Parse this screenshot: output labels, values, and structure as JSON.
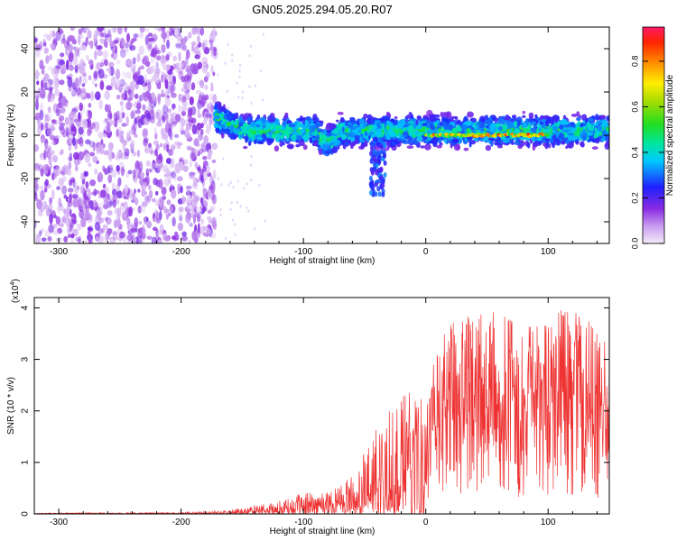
{
  "title": "GN05.2025.294.05.20.R07",
  "colors": {
    "signal": "#ee3333",
    "axis": "#000000",
    "background": "#ffffff"
  },
  "chart_data": [
    {
      "type": "heatmap",
      "title": "GN05.2025.294.05.20.R07",
      "xlabel": "Height of straight line (km)",
      "ylabel": "Frequency (Hz)",
      "xlim": [
        -320,
        150
      ],
      "ylim": [
        -50,
        50
      ],
      "x_ticks": [
        -300,
        -200,
        -100,
        0,
        100
      ],
      "x_tick_labels": [
        "-300",
        "-200",
        "-100",
        "0",
        "100"
      ],
      "y_ticks": [
        -40,
        -20,
        0,
        20,
        40
      ],
      "y_tick_labels": [
        "-40",
        "-20",
        "0",
        "20",
        "40"
      ],
      "colorbar": {
        "label": "Normalized spectral amplitude",
        "range": [
          0,
          0.95
        ],
        "ticks": [
          0.0,
          0.2,
          0.4,
          0.6,
          0.8
        ],
        "tick_labels": [
          "0.0",
          "0.2",
          "0.4",
          "0.6",
          "0.8"
        ]
      },
      "regions": [
        {
          "name": "broadband noise",
          "x_range": [
            -320,
            -172
          ],
          "freq_range": [
            -50,
            50
          ],
          "amplitude": 0.1
        },
        {
          "name": "signal band",
          "x_range": [
            -172,
            150
          ],
          "center_freq": 2,
          "halfwidth_hz": 7,
          "amplitude": 0.3
        },
        {
          "name": "strong carrier",
          "x_range": [
            0,
            100
          ],
          "center_freq": 0,
          "amplitude": 0.9
        }
      ]
    },
    {
      "type": "line",
      "xlabel": "Height of straight line (km)",
      "ylabel": "SNR (10 * v/v)",
      "scale_label": "(x10",
      "scale_exponent": "4",
      "xlim": [
        -320,
        150
      ],
      "ylim": [
        0,
        4.2
      ],
      "x_ticks": [
        -300,
        -200,
        -100,
        0,
        100
      ],
      "x_tick_labels": [
        "-300",
        "-200",
        "-100",
        "0",
        "100"
      ],
      "y_ticks": [
        0,
        1,
        2,
        3,
        4
      ],
      "y_tick_labels": [
        "0",
        "1",
        "2",
        "3",
        "4"
      ],
      "series": [
        {
          "name": "SNR",
          "envelope_x": [
            -320,
            -200,
            -160,
            -120,
            -100,
            -80,
            -60,
            -45,
            -30,
            -10,
            0,
            20,
            40,
            60,
            80,
            100,
            120,
            150
          ],
          "envelope_max": [
            0.02,
            0.03,
            0.08,
            0.25,
            0.4,
            0.5,
            0.8,
            1.4,
            2.2,
            2.4,
            2.5,
            3.8,
            4.0,
            3.9,
            3.6,
            3.8,
            4.1,
            3.3
          ]
        }
      ]
    }
  ]
}
